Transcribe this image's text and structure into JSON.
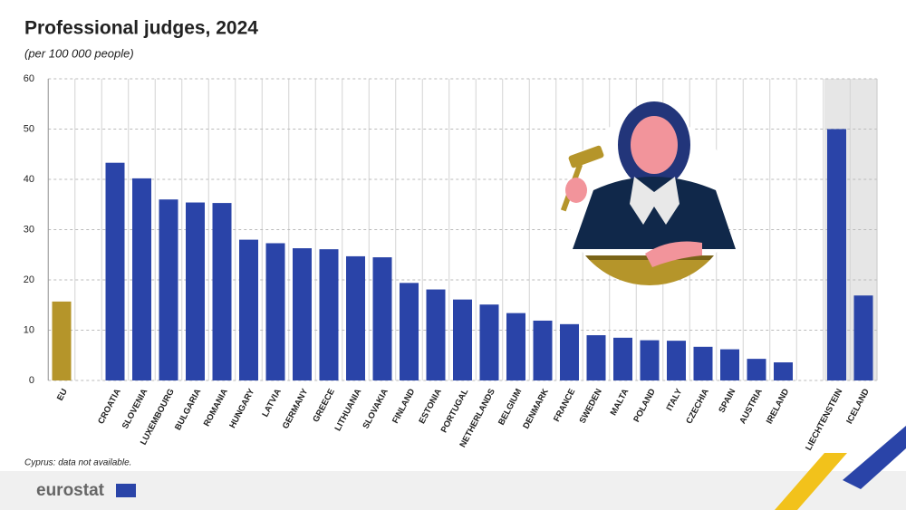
{
  "chart_data": {
    "type": "bar",
    "title": "Professional judges, 2024",
    "subtitle": "(per 100 000 people)",
    "categories": [
      "EU",
      null,
      "CROATIA",
      "SLOVENIA",
      "LUXEMBOURG",
      "BULGARIA",
      "ROMANIA",
      "HUNGARY",
      "LATVIA",
      "GERMANY",
      "GREECE",
      "LITHUANIA",
      "SLOVAKIA",
      "FINLAND",
      "ESTONIA",
      "PORTUGAL",
      "NETHERLANDS",
      "BELGIUM",
      "DENMARK",
      "FRANCE",
      "SWEDEN",
      "MALTA",
      "POLAND",
      "ITALY",
      "CZECHIA",
      "SPAIN",
      "AUSTRIA",
      "IRELAND",
      null,
      "LIECHTENSTEIN",
      "ICELAND"
    ],
    "values": [
      15.7,
      null,
      43.3,
      40.2,
      36.0,
      35.4,
      35.3,
      28.0,
      27.3,
      26.3,
      26.1,
      24.7,
      24.5,
      19.4,
      18.1,
      16.1,
      15.1,
      13.4,
      11.9,
      11.2,
      9.0,
      8.5,
      8.0,
      7.9,
      6.7,
      6.2,
      4.3,
      3.6,
      null,
      50.0,
      16.9
    ],
    "colors": [
      "#b5952a",
      null,
      "#2a44a8",
      "#2a44a8",
      "#2a44a8",
      "#2a44a8",
      "#2a44a8",
      "#2a44a8",
      "#2a44a8",
      "#2a44a8",
      "#2a44a8",
      "#2a44a8",
      "#2a44a8",
      "#2a44a8",
      "#2a44a8",
      "#2a44a8",
      "#2a44a8",
      "#2a44a8",
      "#2a44a8",
      "#2a44a8",
      "#2a44a8",
      "#2a44a8",
      "#2a44a8",
      "#2a44a8",
      "#2a44a8",
      "#2a44a8",
      "#2a44a8",
      "#2a44a8",
      null,
      "#2a44a8",
      "#2a44a8"
    ],
    "ylim": [
      0,
      60
    ],
    "yticks": [
      0,
      10,
      20,
      30,
      40,
      50,
      60
    ],
    "grid": true,
    "note": "Cyprus: data not available.",
    "logo": "eurostat"
  }
}
